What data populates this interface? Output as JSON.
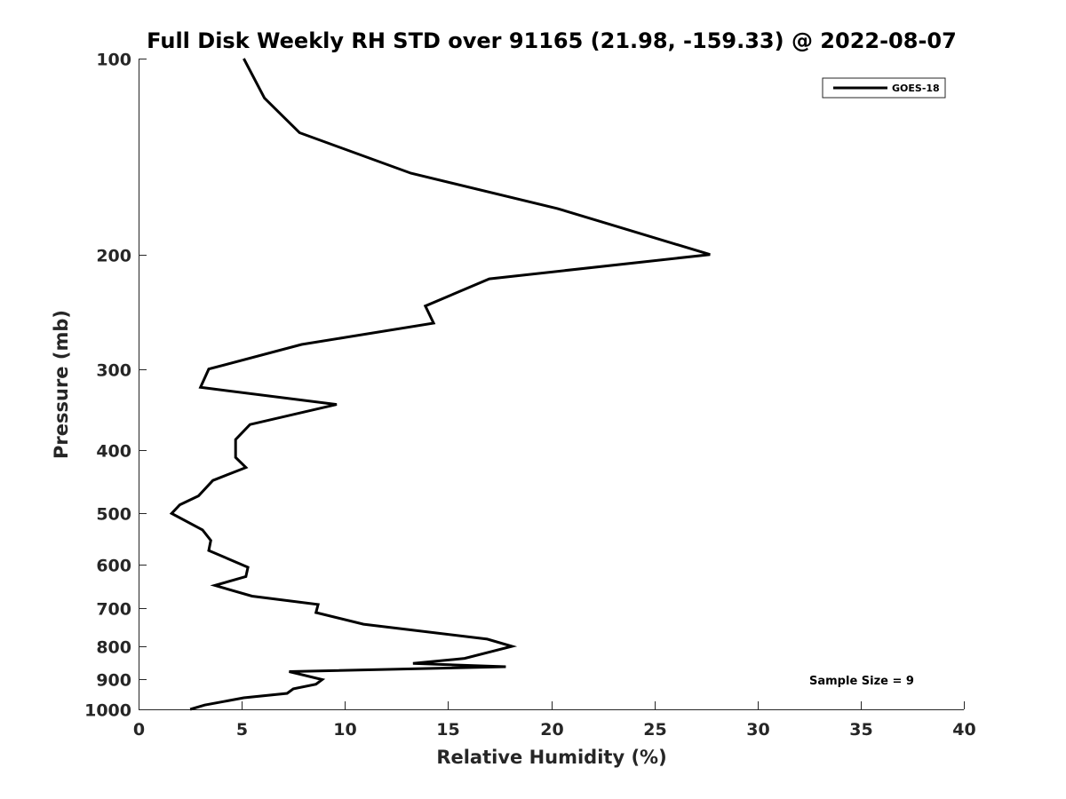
{
  "chart_data": {
    "type": "line",
    "title": "Full Disk Weekly RH STD over 91165 (21.98, -159.33) @ 2022-08-07",
    "xlabel": "Relative Humidity (%)",
    "ylabel": "Pressure (mb)",
    "xlim": [
      0,
      40
    ],
    "ylim": [
      100,
      1000
    ],
    "yscale": "log",
    "yaxis_reversed": true,
    "xticks": [
      0,
      5,
      10,
      15,
      20,
      25,
      30,
      35,
      40
    ],
    "yticks": [
      100,
      200,
      300,
      400,
      500,
      600,
      700,
      800,
      900,
      1000
    ],
    "grid": false,
    "legend": "top-right",
    "annotation": "Sample Size = 9",
    "series": [
      {
        "name": "GOES-18",
        "color": "#000000",
        "x": [
          5.1,
          6.1,
          7.8,
          13.2,
          20.3,
          27.7,
          17.0,
          13.9,
          14.3,
          7.9,
          3.4,
          3.0,
          9.6,
          5.4,
          4.7,
          4.7,
          5.2,
          3.6,
          2.9,
          2.0,
          1.6,
          3.1,
          3.5,
          3.4,
          5.3,
          5.2,
          3.7,
          5.5,
          8.7,
          8.6,
          10.9,
          16.9,
          18.1,
          17.1,
          15.8,
          13.3,
          17.8,
          7.3,
          8.9,
          8.6,
          7.5,
          7.2,
          5.1,
          3.2,
          2.5
        ],
        "y": [
          100,
          115,
          130,
          150,
          170,
          200,
          218,
          240,
          255,
          275,
          300,
          320,
          340,
          365,
          385,
          410,
          425,
          445,
          470,
          485,
          500,
          530,
          550,
          570,
          605,
          625,
          645,
          670,
          690,
          710,
          740,
          780,
          800,
          815,
          835,
          850,
          860,
          875,
          900,
          915,
          930,
          945,
          960,
          985,
          1000
        ]
      }
    ]
  }
}
